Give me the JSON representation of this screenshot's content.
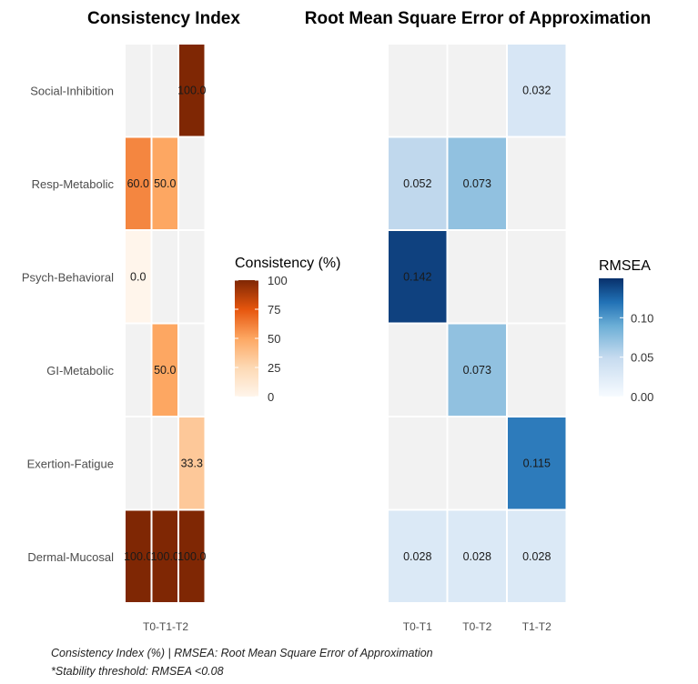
{
  "chart_data": [
    {
      "type": "heatmap",
      "title": "Consistency Index",
      "rows": [
        "Social-Inhibition",
        "Resp-Metabolic",
        "Psych-Behavioral",
        "GI-Metabolic",
        "Exertion-Fatigue",
        "Dermal-Mucosal"
      ],
      "x_axis_label": "T0-T1-T2",
      "columns": 3,
      "cells": [
        [
          null,
          null,
          100.0
        ],
        [
          60.0,
          50.0,
          null
        ],
        [
          0.0,
          null,
          null
        ],
        [
          null,
          50.0,
          null
        ],
        [
          null,
          null,
          33.3
        ],
        [
          100.0,
          100.0,
          100.0
        ]
      ],
      "legend": {
        "title": "Consistency (%)",
        "range": [
          0,
          100
        ],
        "ticks": [
          "100",
          "75",
          "50",
          "25",
          "0"
        ],
        "low_color": "#fff5eb",
        "high_color": "#7f2704"
      }
    },
    {
      "type": "heatmap",
      "title": "Root Mean Square Error of Approximation",
      "rows": [
        "Social-Inhibition",
        "Resp-Metabolic",
        "Psych-Behavioral",
        "GI-Metabolic",
        "Exertion-Fatigue",
        "Dermal-Mucosal"
      ],
      "columns": [
        "T0-T1",
        "T0-T2",
        "T1-T2"
      ],
      "cells": [
        [
          null,
          null,
          0.032
        ],
        [
          0.052,
          0.073,
          null
        ],
        [
          0.142,
          null,
          null
        ],
        [
          null,
          0.073,
          null
        ],
        [
          null,
          null,
          0.115
        ],
        [
          0.028,
          0.028,
          0.028
        ]
      ],
      "legend": {
        "title": "RMSEA",
        "range": [
          0,
          0.15
        ],
        "ticks": [
          "0.10",
          "0.05",
          "0.00"
        ],
        "low_color": "#f7fbff",
        "high_color": "#08306b"
      }
    }
  ],
  "colors": {
    "empty_cell": "#f2f2f2",
    "grid_line": "#ffffff"
  },
  "caption": {
    "line1": "Consistency Index (%) | RMSEA: Root Mean Square Error of Approximation",
    "line2": "*Stability threshold: RMSEA <0.08"
  }
}
